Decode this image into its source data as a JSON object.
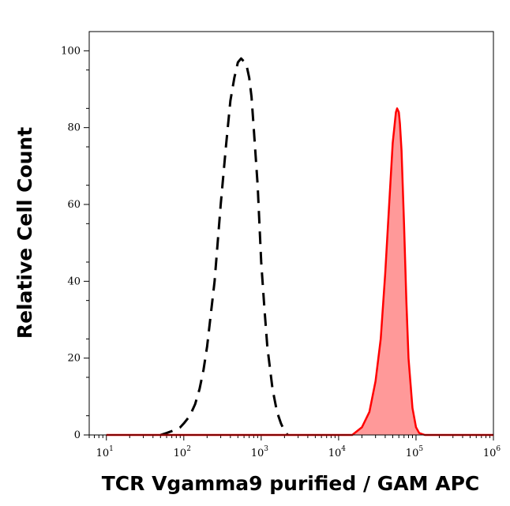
{
  "chart_data": {
    "type": "area",
    "xlabel": "TCR Vgamma9 purified / GAM APC",
    "ylabel": "Relative Cell Count",
    "xscale": "log",
    "xlim": [
      6,
      1000000
    ],
    "ylim": [
      0,
      105
    ],
    "x_ticks": [
      {
        "base": "10",
        "exp": "1",
        "value": 10
      },
      {
        "base": "10",
        "exp": "2",
        "value": 100
      },
      {
        "base": "10",
        "exp": "3",
        "value": 1000
      },
      {
        "base": "10",
        "exp": "4",
        "value": 10000
      },
      {
        "base": "10",
        "exp": "5",
        "value": 100000
      },
      {
        "base": "10",
        "exp": "6",
        "value": 1000000
      }
    ],
    "y_ticks": [
      {
        "label": "0",
        "value": 0
      },
      {
        "label": "20",
        "value": 20
      },
      {
        "label": "40",
        "value": 40
      },
      {
        "label": "60",
        "value": 60
      },
      {
        "label": "80",
        "value": 80
      },
      {
        "label": "100",
        "value": 100
      }
    ],
    "grid": false,
    "legend": "none",
    "series": [
      {
        "style": "dashed",
        "color": "#000000",
        "fill": "none",
        "x": [
          50,
          60,
          70,
          80,
          90,
          100,
          120,
          140,
          160,
          180,
          200,
          250,
          300,
          350,
          400,
          450,
          500,
          550,
          580,
          620,
          650,
          700,
          750,
          800,
          900,
          1000,
          1100,
          1200,
          1400,
          1600,
          1800,
          2000,
          2200
        ],
        "y": [
          0,
          0.5,
          1,
          1.5,
          2,
          3,
          5,
          8,
          12,
          17,
          23,
          40,
          60,
          75,
          87,
          93,
          97,
          98,
          97.5,
          97,
          96,
          93,
          88,
          80,
          65,
          45,
          33,
          23,
          12,
          6,
          3,
          1,
          0
        ]
      },
      {
        "style": "solid",
        "color": "#ff0000",
        "fill": "#ff9999",
        "x": [
          10,
          15000,
          20000,
          25000,
          30000,
          35000,
          40000,
          45000,
          50000,
          55000,
          57000,
          60000,
          62000,
          65000,
          70000,
          75000,
          80000,
          90000,
          100000,
          110000,
          130000,
          1000000
        ],
        "y": [
          0,
          0,
          2,
          6,
          14,
          25,
          42,
          60,
          76,
          84,
          85,
          84,
          81,
          74,
          55,
          35,
          20,
          7,
          2,
          0.5,
          0,
          0
        ]
      }
    ]
  }
}
